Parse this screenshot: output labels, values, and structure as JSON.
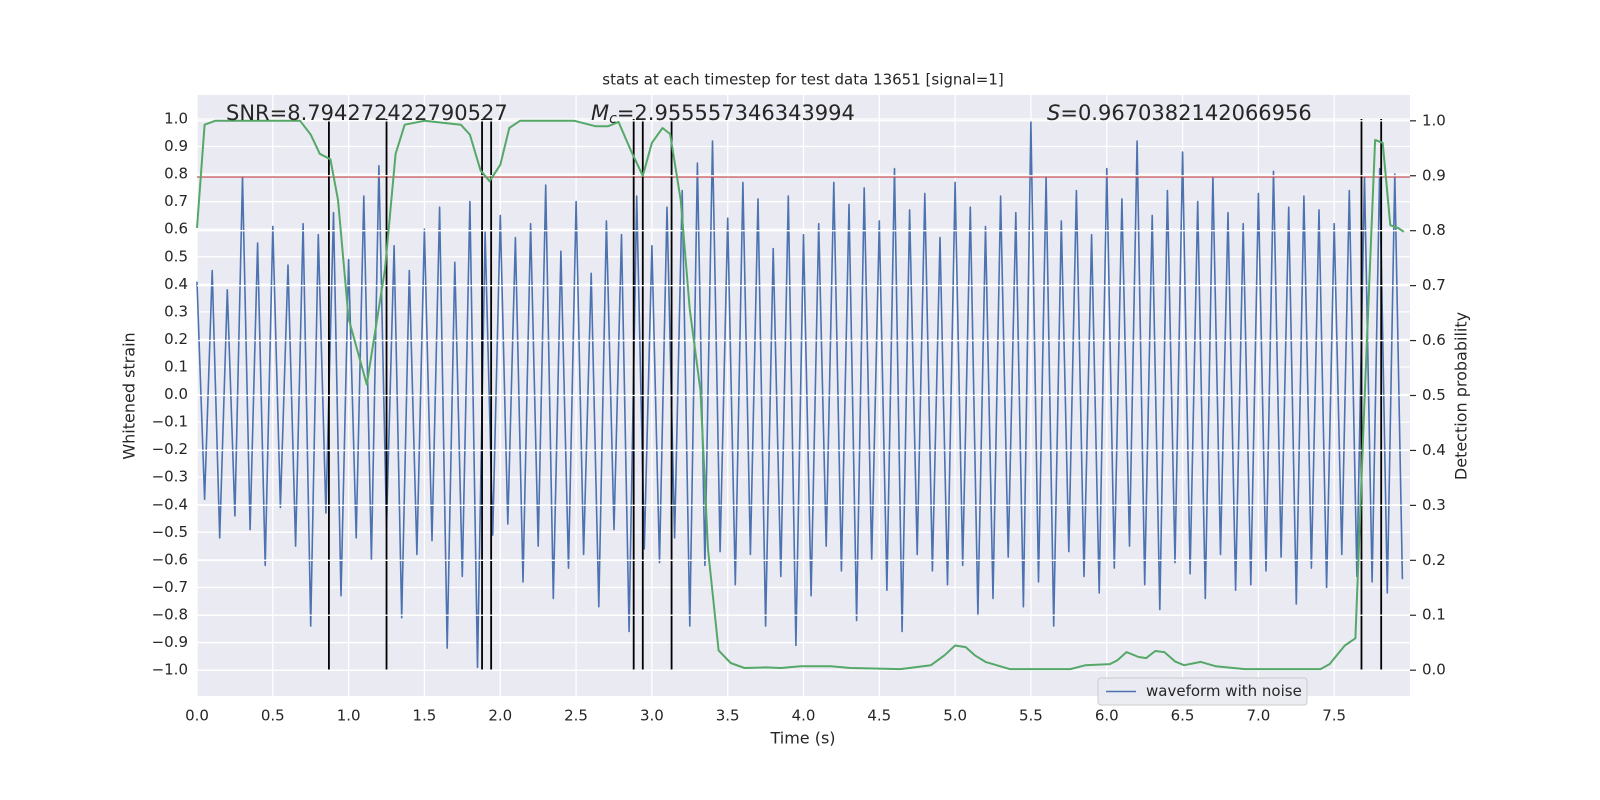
{
  "chart_data": {
    "type": "line",
    "title": "stats at each timestep for test data 13651 [signal=1]",
    "xlabel": "Time (s)",
    "ylabel": "Whitened strain",
    "y2label": "Detection probability",
    "annotations": [
      {
        "text": "SNR=8.794272422790527"
      },
      {
        "symbol": "M",
        "subscript": "c",
        "text": "=2.955557346343994"
      },
      {
        "symbol": "S",
        "text": "=0.9670382142066956"
      }
    ],
    "xlim": [
      0,
      8
    ],
    "ylim": [
      -1.094,
      1.087
    ],
    "y2lim": [
      -0.047,
      1.047
    ],
    "xticks": [
      {
        "value": 0,
        "label": "0.0"
      },
      0.5,
      {
        "value": 1,
        "label": "1.0"
      },
      1.5,
      {
        "value": 2,
        "label": "2.0"
      },
      2.5,
      {
        "value": 3,
        "label": "3.0"
      },
      3.5,
      {
        "value": 4,
        "label": "4.0"
      },
      4.5,
      {
        "value": 5,
        "label": "5.0"
      },
      5.5,
      {
        "value": 6,
        "label": "6.0"
      },
      6.5,
      {
        "value": 7,
        "label": "7.0"
      },
      7.5
    ],
    "yticks": [
      {
        "value": -1,
        "label": "−1.0"
      },
      {
        "value": -0.9,
        "label": "−0.9"
      },
      {
        "value": -0.8,
        "label": "−0.8"
      },
      {
        "value": -0.7,
        "label": "−0.7"
      },
      {
        "value": -0.6,
        "label": "−0.6"
      },
      {
        "value": -0.5,
        "label": "−0.5"
      },
      {
        "value": -0.4,
        "label": "−0.4"
      },
      {
        "value": -0.3,
        "label": "−0.3"
      },
      {
        "value": -0.2,
        "label": "−0.2"
      },
      {
        "value": -0.1,
        "label": "−0.1"
      },
      {
        "value": 0,
        "label": "0.0"
      },
      0.1,
      0.2,
      0.3,
      0.4,
      0.5,
      0.6,
      0.7,
      0.8,
      0.9,
      {
        "value": 1,
        "label": "1.0"
      }
    ],
    "y2ticks": [
      {
        "value": 0,
        "label": "0.0"
      },
      0.1,
      0.2,
      0.3,
      0.4,
      0.5,
      0.6,
      0.7,
      0.8,
      0.9,
      {
        "value": 1,
        "label": "1.0"
      }
    ],
    "grid": true,
    "legend": "lower right",
    "hline": {
      "value": 0.79,
      "color": "#c44e52"
    },
    "vlines": {
      "x": [
        0.87,
        1.25,
        1.88,
        1.94,
        2.88,
        2.94,
        3.13,
        7.68,
        7.81
      ],
      "range": [
        -1,
        1
      ],
      "color": "#000000"
    },
    "series": [
      {
        "name": "waveform with noise",
        "color": "#4c72b0",
        "x": [
          0,
          0.05,
          0.1,
          0.15,
          0.2,
          0.25,
          0.3,
          0.35,
          0.4,
          0.45,
          0.5,
          0.55,
          0.6,
          0.65,
          0.7,
          0.75,
          0.8,
          0.85,
          0.9,
          0.95,
          1,
          1.05,
          1.1,
          1.15,
          1.2,
          1.25,
          1.3,
          1.35,
          1.4,
          1.45,
          1.5,
          1.55,
          1.6,
          1.65,
          1.7,
          1.75,
          1.8,
          1.85,
          1.9,
          1.95,
          2,
          2.05,
          2.1,
          2.15,
          2.2,
          2.25,
          2.3,
          2.35,
          2.4,
          2.45,
          2.5,
          2.55,
          2.6,
          2.65,
          2.7,
          2.75,
          2.8,
          2.85,
          2.9,
          2.95,
          3,
          3.05,
          3.1,
          3.15,
          3.2,
          3.25,
          3.3,
          3.35,
          3.4,
          3.45,
          3.5,
          3.55,
          3.6,
          3.65,
          3.7,
          3.75,
          3.8,
          3.85,
          3.9,
          3.95,
          4,
          4.05,
          4.1,
          4.15,
          4.2,
          4.25,
          4.3,
          4.35,
          4.4,
          4.45,
          4.5,
          4.55,
          4.6,
          4.65,
          4.7,
          4.75,
          4.8,
          4.85,
          4.9,
          4.95,
          5,
          5.05,
          5.1,
          5.15,
          5.2,
          5.25,
          5.3,
          5.35,
          5.4,
          5.45,
          5.5,
          5.55,
          5.6,
          5.65,
          5.7,
          5.75,
          5.8,
          5.85,
          5.9,
          5.95,
          6,
          6.05,
          6.1,
          6.15,
          6.2,
          6.25,
          6.3,
          6.35,
          6.4,
          6.45,
          6.5,
          6.55,
          6.6,
          6.65,
          6.7,
          6.75,
          6.8,
          6.85,
          6.9,
          6.95,
          7,
          7.05,
          7.1,
          7.15,
          7.2,
          7.25,
          7.3,
          7.35,
          7.4,
          7.45,
          7.5,
          7.55,
          7.6,
          7.65,
          7.7,
          7.75,
          7.8,
          7.85,
          7.9,
          7.95
        ],
        "values": [
          0.41,
          -0.38,
          0.45,
          -0.52,
          0.38,
          -0.44,
          0.79,
          -0.49,
          0.55,
          -0.62,
          0.61,
          -0.41,
          0.47,
          -0.55,
          0.62,
          -0.84,
          0.58,
          -0.43,
          0.66,
          -0.73,
          0.49,
          -0.52,
          0.72,
          -0.6,
          0.83,
          -0.48,
          0.54,
          -0.81,
          0.45,
          -0.58,
          0.6,
          -0.53,
          0.68,
          -0.92,
          0.48,
          -0.66,
          0.7,
          -0.99,
          0.59,
          -0.51,
          0.65,
          -0.47,
          0.57,
          -0.68,
          0.62,
          -0.55,
          0.76,
          -0.74,
          0.52,
          -0.63,
          0.7,
          -0.58,
          0.44,
          -0.77,
          0.63,
          -0.49,
          0.58,
          -0.86,
          0.72,
          -0.56,
          0.54,
          -0.61,
          0.68,
          -0.52,
          0.74,
          -0.84,
          0.84,
          -0.62,
          0.92,
          -0.57,
          0.64,
          -0.69,
          0.77,
          -0.58,
          0.71,
          -0.84,
          0.53,
          -0.66,
          0.72,
          -0.91,
          0.58,
          -0.73,
          0.62,
          -0.55,
          0.77,
          -0.64,
          0.69,
          -0.82,
          0.75,
          -0.6,
          0.63,
          -0.71,
          0.82,
          -0.86,
          0.67,
          -0.58,
          0.73,
          -0.64,
          0.57,
          -0.69,
          0.77,
          -0.62,
          0.68,
          -0.8,
          0.61,
          -0.74,
          0.72,
          -0.59,
          0.66,
          -0.77,
          0.99,
          -0.68,
          0.79,
          -0.84,
          0.63,
          -0.57,
          0.74,
          -0.66,
          0.58,
          -0.72,
          0.82,
          -0.63,
          0.71,
          -0.55,
          0.92,
          -0.69,
          0.65,
          -0.78,
          0.74,
          -0.61,
          0.88,
          -0.65,
          0.7,
          -0.74,
          0.79,
          -0.58,
          0.66,
          -0.71,
          0.62,
          -0.69,
          0.73,
          -0.64,
          0.81,
          -0.59,
          0.68,
          -0.76,
          0.72,
          -0.63,
          0.67,
          -0.7,
          0.62,
          -0.58,
          0.74,
          -0.66,
          0.79,
          -0.68,
          0.82,
          -0.72,
          0.8,
          -0.67
        ]
      },
      {
        "color": "#55a868",
        "axis": "y2",
        "x": [
          0,
          0.05,
          0.12,
          0.68,
          0.75,
          0.81,
          0.88,
          0.93,
          1,
          1.12,
          1.24,
          1.31,
          1.37,
          1.5,
          1.74,
          1.8,
          1.87,
          1.93,
          2,
          2.06,
          2.13,
          2.49,
          2.63,
          2.71,
          2.78,
          2.86,
          2.94,
          3,
          3.07,
          3.12,
          3.19,
          3.25,
          3.32,
          3.37,
          3.44,
          3.52,
          3.61,
          3.75,
          3.85,
          3.98,
          4.18,
          4.31,
          4.64,
          4.84,
          4.93,
          5,
          5.07,
          5.13,
          5.2,
          5.36,
          5.76,
          5.86,
          6.02,
          6.07,
          6.13,
          6.21,
          6.26,
          6.32,
          6.38,
          6.45,
          6.51,
          6.62,
          6.72,
          6.91,
          7.41,
          7.47,
          7.57,
          7.64,
          7.7,
          7.77,
          7.82,
          7.87,
          7.92,
          7.96
        ],
        "values": [
          0.805,
          0.993,
          1,
          1,
          0.975,
          0.94,
          0.93,
          0.856,
          0.64,
          0.52,
          0.73,
          0.94,
          0.993,
          1,
          0.993,
          0.975,
          0.91,
          0.89,
          0.92,
          0.987,
          1,
          1,
          0.99,
          0.99,
          0.998,
          0.947,
          0.9,
          0.96,
          0.987,
          0.976,
          0.856,
          0.656,
          0.51,
          0.22,
          0.036,
          0.013,
          0.004,
          0.005,
          0.004,
          0.007,
          0.007,
          0.004,
          0.002,
          0.009,
          0.027,
          0.045,
          0.042,
          0.027,
          0.015,
          0.002,
          0.002,
          0.009,
          0.011,
          0.018,
          0.033,
          0.024,
          0.022,
          0.035,
          0.033,
          0.016,
          0.009,
          0.015,
          0.007,
          0.002,
          0.002,
          0.011,
          0.045,
          0.058,
          0.49,
          0.965,
          0.96,
          0.81,
          0.805,
          0.798
        ]
      }
    ]
  }
}
